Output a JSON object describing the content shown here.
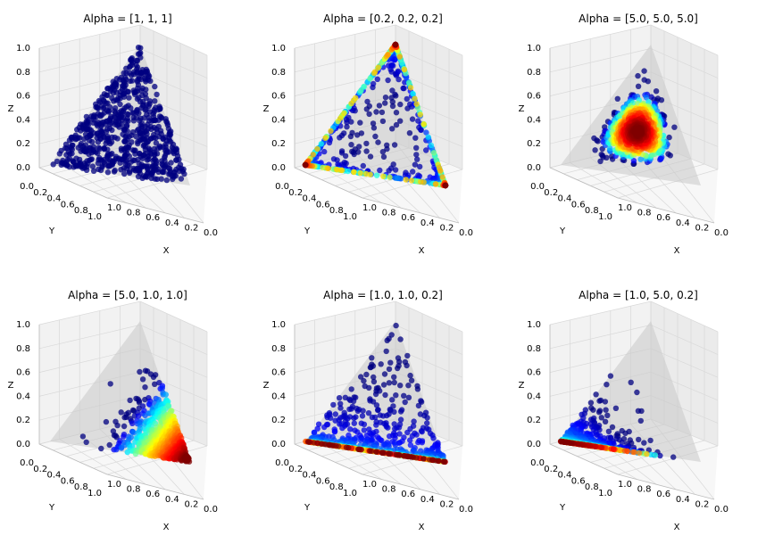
{
  "chart_data": [
    {
      "type": "scatter",
      "subtype": "3d-dirichlet-simplex",
      "title": "Alpha = [1, 1, 1]",
      "alpha": [
        1,
        1,
        1
      ],
      "xlabel": "X",
      "ylabel": "Y",
      "zlabel": "Z",
      "x_ticks": [
        "0.0",
        "0.2",
        "0.4",
        "0.6",
        "0.8",
        "1.0"
      ],
      "y_ticks": [
        "0.0",
        "0.2",
        "0.4",
        "0.6",
        "0.8",
        "1.0"
      ],
      "z_ticks": [
        "0.0",
        "0.2",
        "0.4",
        "0.6",
        "0.8",
        "1.0"
      ],
      "xlim": [
        0,
        1
      ],
      "ylim": [
        0,
        1
      ],
      "zlim": [
        0,
        1
      ],
      "colormap": "jet",
      "grid": true
    },
    {
      "type": "scatter",
      "subtype": "3d-dirichlet-simplex",
      "title": "Alpha = [0.2, 0.2, 0.2]",
      "alpha": [
        0.2,
        0.2,
        0.2
      ],
      "xlabel": "X",
      "ylabel": "Y",
      "zlabel": "Z",
      "x_ticks": [
        "0.0",
        "0.2",
        "0.4",
        "0.6",
        "0.8",
        "1.0"
      ],
      "y_ticks": [
        "0.0",
        "0.2",
        "0.4",
        "0.6",
        "0.8",
        "1.0"
      ],
      "z_ticks": [
        "0.0",
        "0.2",
        "0.4",
        "0.6",
        "0.8",
        "1.0"
      ],
      "xlim": [
        0,
        1
      ],
      "ylim": [
        0,
        1
      ],
      "zlim": [
        0,
        1
      ],
      "colormap": "jet",
      "grid": true
    },
    {
      "type": "scatter",
      "subtype": "3d-dirichlet-simplex",
      "title": "Alpha = [5.0, 5.0, 5.0]",
      "alpha": [
        5.0,
        5.0,
        5.0
      ],
      "xlabel": "X",
      "ylabel": "Y",
      "zlabel": "Z",
      "x_ticks": [
        "0.0",
        "0.2",
        "0.4",
        "0.6",
        "0.8",
        "1.0"
      ],
      "y_ticks": [
        "0.0",
        "0.2",
        "0.4",
        "0.6",
        "0.8",
        "1.0"
      ],
      "z_ticks": [
        "0.0",
        "0.2",
        "0.4",
        "0.6",
        "0.8",
        "1.0"
      ],
      "xlim": [
        0,
        1
      ],
      "ylim": [
        0,
        1
      ],
      "zlim": [
        0,
        1
      ],
      "colormap": "jet",
      "grid": true
    },
    {
      "type": "scatter",
      "subtype": "3d-dirichlet-simplex",
      "title": "Alpha = [5.0, 1.0, 1.0]",
      "alpha": [
        5.0,
        1.0,
        1.0
      ],
      "xlabel": "X",
      "ylabel": "Y",
      "zlabel": "Z",
      "x_ticks": [
        "0.0",
        "0.2",
        "0.4",
        "0.6",
        "0.8",
        "1.0"
      ],
      "y_ticks": [
        "0.0",
        "0.2",
        "0.4",
        "0.6",
        "0.8",
        "1.0"
      ],
      "z_ticks": [
        "0.0",
        "0.2",
        "0.4",
        "0.6",
        "0.8",
        "1.0"
      ],
      "xlim": [
        0,
        1
      ],
      "ylim": [
        0,
        1
      ],
      "zlim": [
        0,
        1
      ],
      "colormap": "jet",
      "grid": true
    },
    {
      "type": "scatter",
      "subtype": "3d-dirichlet-simplex",
      "title": "Alpha = [1.0, 1.0, 0.2]",
      "alpha": [
        1.0,
        1.0,
        0.2
      ],
      "xlabel": "X",
      "ylabel": "Y",
      "zlabel": "Z",
      "x_ticks": [
        "0.0",
        "0.2",
        "0.4",
        "0.6",
        "0.8",
        "1.0"
      ],
      "y_ticks": [
        "0.0",
        "0.2",
        "0.4",
        "0.6",
        "0.8",
        "1.0"
      ],
      "z_ticks": [
        "0.0",
        "0.2",
        "0.4",
        "0.6",
        "0.8",
        "1.0"
      ],
      "xlim": [
        0,
        1
      ],
      "ylim": [
        0,
        1
      ],
      "zlim": [
        0,
        1
      ],
      "colormap": "jet",
      "grid": true
    },
    {
      "type": "scatter",
      "subtype": "3d-dirichlet-simplex",
      "title": "Alpha = [1.0, 5.0, 0.2]",
      "alpha": [
        1.0,
        5.0,
        0.2
      ],
      "xlabel": "X",
      "ylabel": "Y",
      "zlabel": "Z",
      "x_ticks": [
        "0.0",
        "0.2",
        "0.4",
        "0.6",
        "0.8",
        "1.0"
      ],
      "y_ticks": [
        "0.0",
        "0.2",
        "0.4",
        "0.6",
        "0.8",
        "1.0"
      ],
      "z_ticks": [
        "0.0",
        "0.2",
        "0.4",
        "0.6",
        "0.8",
        "1.0"
      ],
      "xlim": [
        0,
        1
      ],
      "ylim": [
        0,
        1
      ],
      "zlim": [
        0,
        1
      ],
      "colormap": "jet",
      "grid": true
    }
  ]
}
